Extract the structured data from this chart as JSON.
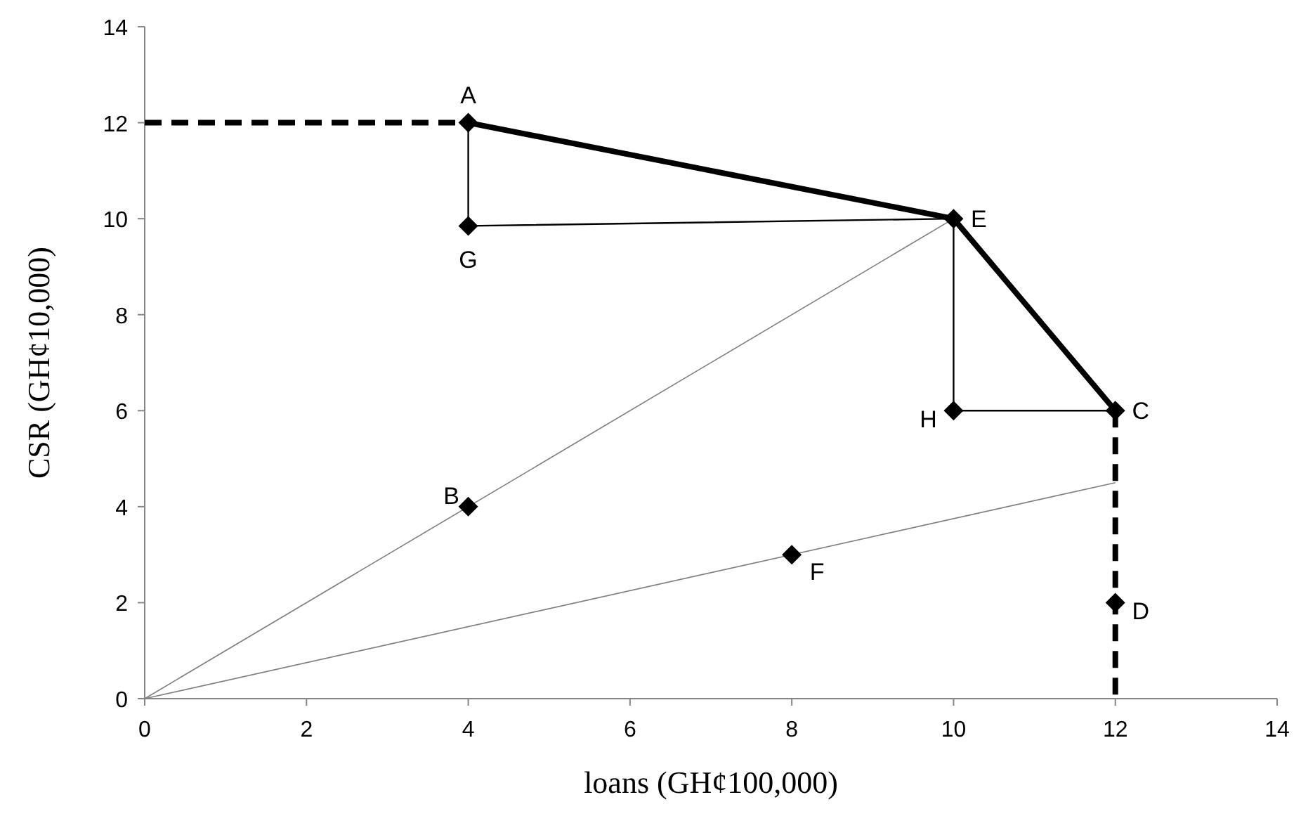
{
  "chart_data": {
    "type": "line",
    "xlabel": "loans (GH¢100,000)",
    "ylabel": "CSR (GH¢10,000)",
    "xlim": [
      0,
      14
    ],
    "ylim": [
      0,
      14
    ],
    "xticks": [
      0,
      2,
      4,
      6,
      8,
      10,
      12,
      14
    ],
    "yticks": [
      0,
      2,
      4,
      6,
      8,
      10,
      12,
      14
    ],
    "grid": false,
    "series": [
      {
        "color": "#808080",
        "x": [
          0,
          10
        ],
        "values": [
          0,
          10
        ],
        "marker": "none"
      },
      {
        "color": "#808080",
        "x": [
          0,
          12
        ],
        "values": [
          0,
          4.5
        ],
        "marker": "none"
      },
      {
        "color": "#000000",
        "x": [
          4,
          4,
          10,
          10,
          12
        ],
        "values": [
          12,
          9.85,
          10,
          6,
          6
        ],
        "marker": "diamond"
      },
      {
        "color": "#000000",
        "x": [
          0,
          4
        ],
        "values": [
          12,
          12
        ],
        "marker": "none",
        "line_style": "dashed"
      },
      {
        "color": "#000000",
        "x": [
          12,
          12
        ],
        "values": [
          6,
          0
        ],
        "marker": "none",
        "line_style": "dashed"
      },
      {
        "color": "#000000",
        "x": [
          4,
          10,
          12
        ],
        "values": [
          12,
          10,
          6
        ],
        "marker": "none"
      },
      {
        "type": "scatter",
        "color": "#000000",
        "x": [
          4,
          8,
          12
        ],
        "values": [
          4,
          3,
          2
        ],
        "marker": "diamond"
      }
    ],
    "annotations": [
      {
        "text": "A",
        "x": 4,
        "y": 12
      },
      {
        "text": "E",
        "x": 10,
        "y": 10
      },
      {
        "text": "C",
        "x": 12,
        "y": 6
      },
      {
        "text": "G",
        "x": 4,
        "y": 9.85
      },
      {
        "text": "H",
        "x": 10,
        "y": 6
      },
      {
        "text": "B",
        "x": 4,
        "y": 4
      },
      {
        "text": "F",
        "x": 8,
        "y": 3
      },
      {
        "text": "D",
        "x": 12,
        "y": 2
      }
    ]
  }
}
